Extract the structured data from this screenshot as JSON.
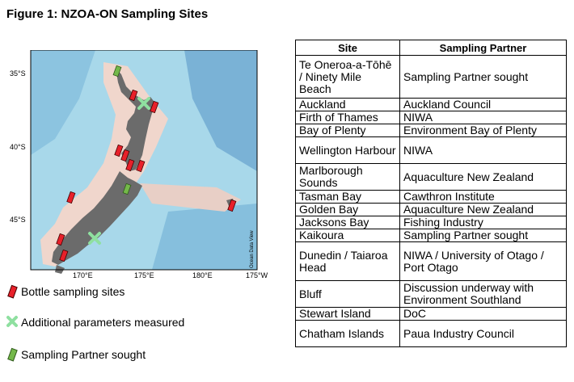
{
  "figure": {
    "title": "Figure 1: NZOA-ON Sampling Sites"
  },
  "map": {
    "lat_labels": [
      "35°S",
      "40°S",
      "45°S"
    ],
    "lon_labels": [
      "170°E",
      "175°E",
      "180°E",
      "175°W"
    ],
    "watermark": "Ocean Data View",
    "colors": {
      "land": "#6b6b6b",
      "shallow": "#f2dcd3",
      "ocean": "#9fd3e6",
      "deep": "#7fb8d9",
      "bottle": "#e8202a",
      "additional": "#8fe0a0",
      "partner": "#74b84a"
    }
  },
  "legend": [
    {
      "label": "Bottle sampling sites",
      "icon": "red-hash-icon"
    },
    {
      "label": "Additional parameters measured",
      "icon": "green-cross-icon"
    },
    {
      "label": "Sampling Partner sought",
      "icon": "green-hash-icon"
    }
  ],
  "table": {
    "headers": [
      "Site",
      "Sampling Partner"
    ],
    "rows": [
      {
        "site": "Te Oneroa-a-Tōhē / Ninety Mile Beach",
        "partner": "Sampling Partner sought"
      },
      {
        "site": "Auckland",
        "partner": "Auckland Council"
      },
      {
        "site": "Firth of Thames",
        "partner": "NIWA"
      },
      {
        "site": "Bay of Plenty",
        "partner": "Environment Bay of Plenty"
      },
      {
        "site": "Wellington Harbour",
        "partner": "NIWA"
      },
      {
        "site": "Marlborough Sounds",
        "partner": "Aquaculture New Zealand"
      },
      {
        "site": "Tasman Bay",
        "partner": "Cawthron Institute"
      },
      {
        "site": "Golden Bay",
        "partner": "Aquaculture New Zealand"
      },
      {
        "site": "Jacksons Bay",
        "partner": "Fishing Industry"
      },
      {
        "site": "Kaikoura",
        "partner": "Sampling Partner sought"
      },
      {
        "site": "Dunedin / Taiaroa Head",
        "partner": "NIWA / University of Otago / Port Otago"
      },
      {
        "site": "Bluff",
        "partner": "Discussion underway with Environment Southland"
      },
      {
        "site": "Stewart Island",
        "partner": "DoC"
      },
      {
        "site": "Chatham Islands",
        "partner": "Paua Industry Council"
      }
    ]
  }
}
